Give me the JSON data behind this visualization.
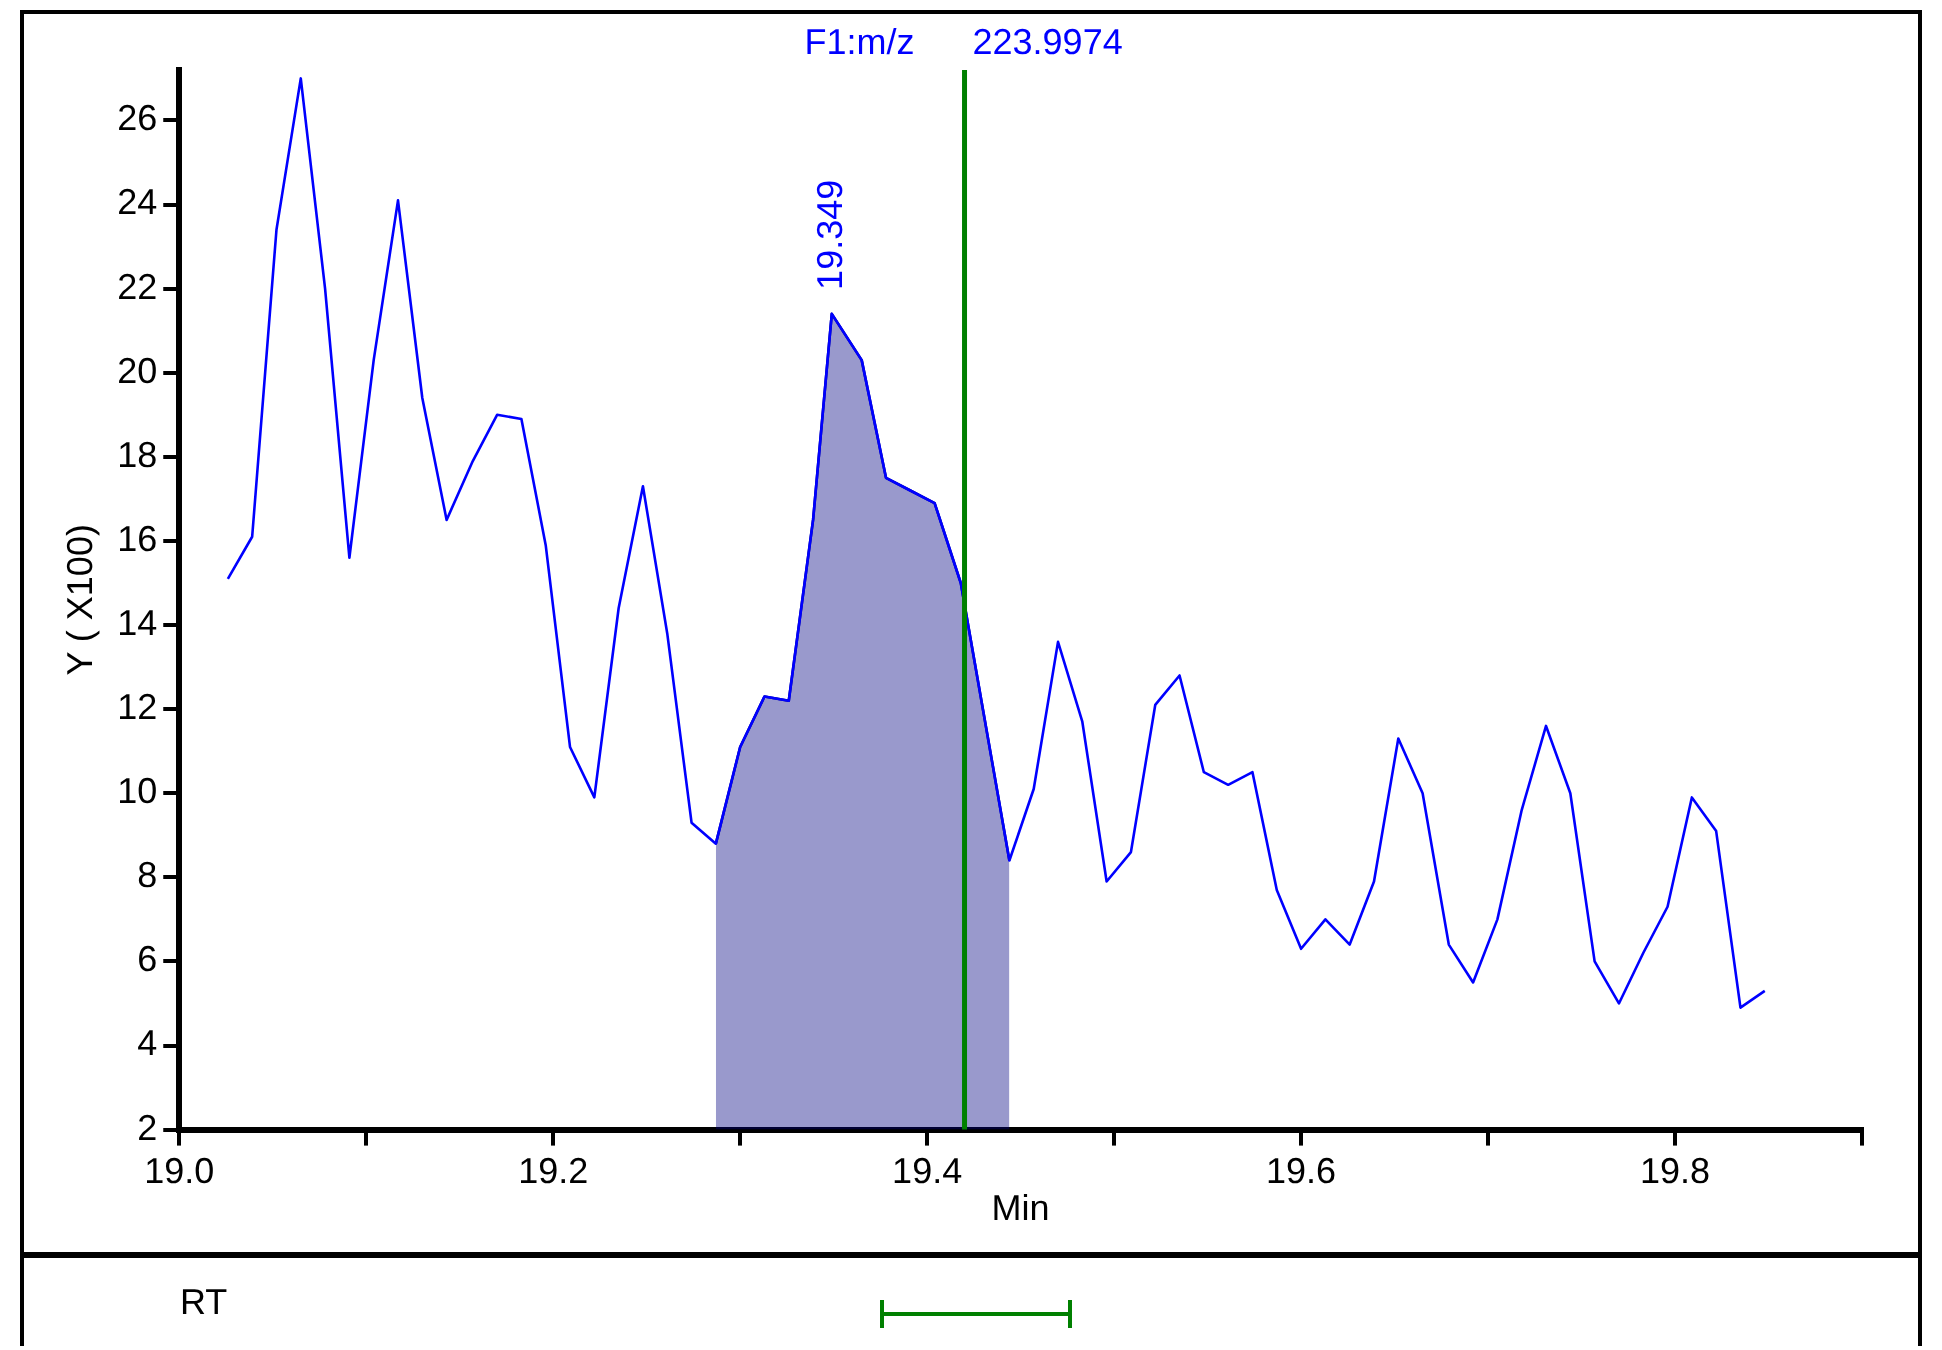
{
  "chart_data": {
    "type": "line",
    "xlabel": "Min",
    "ylabel": "Y ( X100)",
    "xlim": [
      19.0,
      19.9
    ],
    "xticks": [
      {
        "value": 19,
        "label": "19.0"
      },
      {
        "value": 19.1,
        "label": null
      },
      19.2,
      {
        "value": 19.3,
        "label": null
      },
      19.4,
      {
        "value": 19.5,
        "label": null
      },
      19.6,
      {
        "value": 19.7,
        "label": null
      },
      19.8,
      {
        "value": 19.9,
        "label": null
      }
    ],
    "ylim": [
      2,
      27.2
    ],
    "yticks": [
      2,
      4,
      6,
      8,
      10,
      12,
      14,
      16,
      18,
      20,
      22,
      24,
      26
    ],
    "grid": false,
    "legend": false,
    "marker": "none",
    "series": [
      {
        "type": "line",
        "color": "#0000ff",
        "x": [
          19.026,
          19.039,
          19.052,
          19.065,
          19.078,
          19.091,
          19.104,
          19.117,
          19.13,
          19.143,
          19.157,
          19.17,
          19.183,
          19.196,
          19.209,
          19.222,
          19.235,
          19.248,
          19.261,
          19.274,
          19.287,
          19.3,
          19.313,
          19.326,
          19.339,
          19.349,
          19.365,
          19.378,
          19.391,
          19.404,
          19.418,
          19.444,
          19.457,
          19.47,
          19.483,
          19.496,
          19.509,
          19.522,
          19.535,
          19.548,
          19.561,
          19.574,
          19.587,
          19.6,
          19.613,
          19.626,
          19.639,
          19.652,
          19.665,
          19.679,
          19.692,
          19.705,
          19.718,
          19.731,
          19.744,
          19.757,
          19.77,
          19.783,
          19.796,
          19.809,
          19.822,
          19.835,
          19.848
        ],
        "values": [
          15.1,
          16.1,
          23.4,
          27.0,
          22.0,
          15.6,
          20.3,
          24.1,
          19.4,
          16.5,
          17.9,
          19.0,
          18.9,
          15.9,
          11.1,
          9.9,
          14.4,
          17.3,
          13.8,
          9.3,
          8.8,
          11.1,
          12.3,
          12.2,
          16.5,
          21.4,
          20.3,
          17.5,
          17.2,
          16.9,
          15.0,
          8.4,
          10.1,
          13.6,
          11.7,
          7.9,
          8.6,
          12.1,
          12.8,
          10.5,
          10.2,
          10.5,
          7.7,
          6.3,
          7.0,
          6.4,
          7.9,
          11.3,
          10.0,
          6.4,
          5.5,
          7.0,
          9.6,
          11.6,
          10.0,
          6.0,
          5.0,
          6.2,
          7.3,
          9.9,
          9.1,
          4.9,
          5.3
        ]
      },
      {
        "type": "area",
        "color": "#000080",
        "x": [
          19.287,
          19.3,
          19.313,
          19.326,
          19.339,
          19.349,
          19.365,
          19.378,
          19.391,
          19.404,
          19.418,
          19.444
        ],
        "values": [
          8.8,
          11.1,
          12.3,
          12.2,
          16.5,
          21.4,
          20.3,
          17.5,
          17.2,
          16.9,
          15.0,
          8.4
        ]
      }
    ],
    "ref_lines": [
      {
        "axis": "x",
        "value": 19.42,
        "color": "#008000"
      }
    ],
    "annotations": [
      "F1:m/z",
      "223.9974",
      {
        "text": "19.349",
        "x": 19.349,
        "y": 21.4
      },
      "RT"
    ]
  }
}
